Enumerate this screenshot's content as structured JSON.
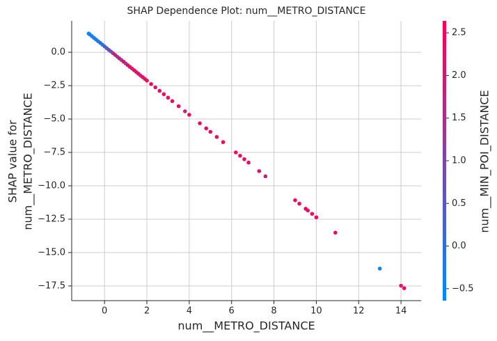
{
  "chart_data": {
    "type": "scatter",
    "title": "SHAP Dependence Plot: num__METRO_DISTANCE",
    "xlabel": "num__METRO_DISTANCE",
    "ylabel": [
      "SHAP value for",
      "num__METRO_DISTANCE"
    ],
    "colorbar_label": "num__MIN_POI_DISTANCE",
    "colors": [
      "#008afb",
      "#ff0051"
    ],
    "x": [
      -0.75,
      -0.7,
      -0.6,
      -0.5,
      -0.4,
      -0.3,
      -0.2,
      -0.1,
      0.0,
      0.1,
      0.2,
      0.3,
      0.4,
      0.5,
      0.6,
      0.7,
      0.8,
      0.9,
      1.0,
      1.1,
      1.2,
      1.3,
      1.4,
      1.5,
      1.6,
      1.7,
      1.8,
      1.9,
      2.0,
      2.2,
      2.4,
      2.6,
      2.8,
      3.0,
      3.2,
      3.5,
      3.8,
      4.0,
      4.5,
      4.8,
      5.0,
      5.3,
      5.6,
      6.2,
      6.4,
      6.6,
      6.8,
      7.3,
      7.6,
      9.0,
      9.2,
      9.5,
      9.6,
      9.8,
      10.0,
      10.9,
      13.0,
      14.0,
      14.15
    ],
    "values": [
      1.4,
      1.34,
      1.21,
      1.08,
      0.95,
      0.82,
      0.7,
      0.57,
      0.44,
      0.31,
      0.18,
      0.06,
      -0.07,
      -0.2,
      -0.33,
      -0.46,
      -0.58,
      -0.71,
      -0.84,
      -0.97,
      -1.1,
      -1.22,
      -1.35,
      -1.48,
      -1.61,
      -1.74,
      -1.86,
      -1.99,
      -2.12,
      -2.38,
      -2.63,
      -2.89,
      -3.14,
      -3.4,
      -3.66,
      -4.04,
      -4.42,
      -4.68,
      -5.32,
      -5.7,
      -5.96,
      -6.34,
      -6.73,
      -7.5,
      -7.75,
      -8.01,
      -8.26,
      -8.9,
      -9.29,
      -11.08,
      -11.34,
      -11.72,
      -11.85,
      -12.1,
      -12.36,
      -13.51,
      -16.2,
      -17.48,
      -17.67
    ],
    "color_values": [
      -0.5,
      -0.5,
      -0.4,
      -0.3,
      -0.2,
      -0.3,
      0.0,
      -0.2,
      0.2,
      0.5,
      1.0,
      0.3,
      1.5,
      2.0,
      1.2,
      2.3,
      1.0,
      2.5,
      1.4,
      2.2,
      2.5,
      1.8,
      2.5,
      2.0,
      2.5,
      1.6,
      2.5,
      2.2,
      2.5,
      2.5,
      2.0,
      2.5,
      2.5,
      2.4,
      2.5,
      2.5,
      1.7,
      2.5,
      2.5,
      2.5,
      2.5,
      2.5,
      2.5,
      2.5,
      2.5,
      2.5,
      2.5,
      2.2,
      1.8,
      2.5,
      2.5,
      2.5,
      2.3,
      2.5,
      2.5,
      2.5,
      -0.4,
      2.1,
      2.5
    ],
    "xlim": [
      -1.55,
      14.95
    ],
    "ylim": [
      -18.6,
      2.35
    ],
    "clim": [
      -0.64,
      2.64
    ],
    "xticks": [
      0,
      2,
      4,
      6,
      8,
      10,
      12,
      14
    ],
    "yticks": [
      {
        "value": 0,
        "label": "0.0"
      },
      {
        "value": -2.5,
        "label": "−2.5"
      },
      {
        "value": -5,
        "label": "−5.0"
      },
      {
        "value": -7.5,
        "label": "−7.5"
      },
      {
        "value": -10,
        "label": "−10.0"
      },
      {
        "value": -12.5,
        "label": "−12.5"
      },
      {
        "value": -15,
        "label": "−15.0"
      },
      {
        "value": -17.5,
        "label": "−17.5"
      }
    ],
    "cticks": [
      {
        "value": -0.5,
        "label": "−0.5"
      },
      {
        "value": 0,
        "label": "0.0"
      },
      {
        "value": 0.5,
        "label": "0.5"
      },
      {
        "value": 1,
        "label": "1.0"
      },
      {
        "value": 1.5,
        "label": "1.5"
      },
      {
        "value": 2,
        "label": "2.0"
      },
      {
        "value": 2.5,
        "label": "2.5"
      }
    ],
    "grid": true
  }
}
